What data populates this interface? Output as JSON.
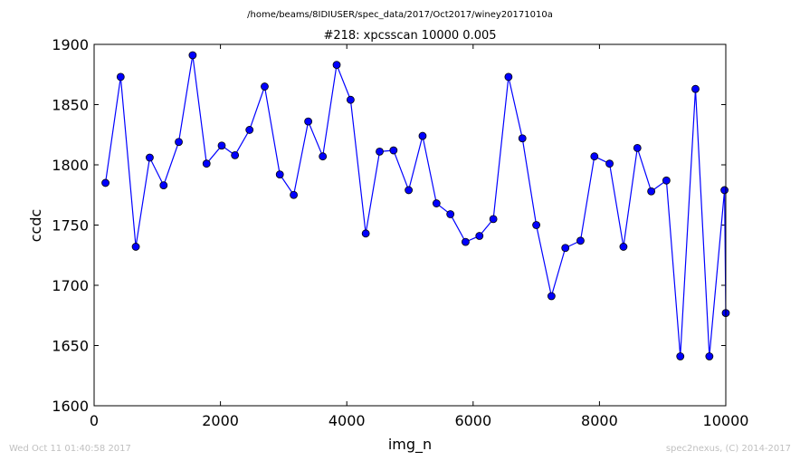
{
  "suptitle": "/home/beams/8IDIUSER/spec_data/2017/Oct2017/winey20171010a",
  "timestamp": "Wed Oct 11 01:40:58 2017",
  "credit": "spec2nexus, (C) 2014-2017",
  "chart_data": {
    "type": "line",
    "title": "#218: xpcsscan 10000 0.005",
    "xlabel": "img_n",
    "ylabel": "ccdc",
    "xlim": [
      0,
      10000
    ],
    "ylim": [
      1600,
      1900
    ],
    "xticks": [
      0,
      2000,
      4000,
      6000,
      8000,
      10000
    ],
    "yticks": [
      1600,
      1650,
      1700,
      1750,
      1800,
      1850,
      1900
    ],
    "grid": false,
    "marker": "circle",
    "colors": {
      "line": "#0000ff",
      "marker_fill": "#0000ff",
      "marker_edge": "#000000",
      "axes": "#000000"
    },
    "series": [
      {
        "x": [
          180,
          420,
          660,
          880,
          1100,
          1340,
          1560,
          1780,
          2020,
          2230,
          2460,
          2700,
          2940,
          3160,
          3390,
          3620,
          3840,
          4060,
          4300,
          4520,
          4740,
          4980,
          5200,
          5420,
          5640,
          5880,
          6100,
          6320,
          6560,
          6780,
          7000,
          7240,
          7460,
          7700,
          7920,
          8160,
          8380,
          8600,
          8820,
          9060,
          9280,
          9520,
          9740,
          9980,
          10000
        ],
        "y": [
          1785,
          1873,
          1732,
          1806,
          1783,
          1819,
          1891,
          1801,
          1816,
          1808,
          1829,
          1865,
          1792,
          1775,
          1836,
          1807,
          1883,
          1854,
          1743,
          1811,
          1812,
          1779,
          1824,
          1768,
          1759,
          1736,
          1741,
          1755,
          1873,
          1822,
          1750,
          1691,
          1731,
          1737,
          1807,
          1801,
          1732,
          1814,
          1778,
          1787,
          1641,
          1863,
          1641,
          1779,
          1677
        ]
      }
    ]
  }
}
